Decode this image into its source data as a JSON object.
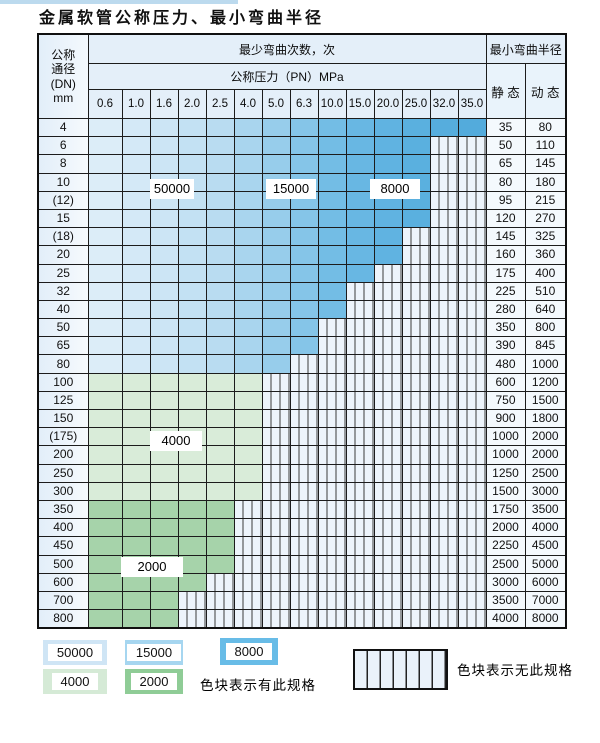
{
  "title": "金属软管公称压力、最小弯曲半径",
  "table": {
    "dn_header_lines": [
      "公称",
      "通径",
      "(DN)",
      "mm"
    ],
    "bend_cycles_header": "最少弯曲次数，次",
    "pressure_header": "公称压力（PN）MPa",
    "radius_header": "最小弯曲半径",
    "static_header": "静 态",
    "dynamic_header": "动 态",
    "pressure_columns": [
      "0.6",
      "1.0",
      "1.6",
      "2.0",
      "2.5",
      "4.0",
      "5.0",
      "6.3",
      "10.0",
      "15.0",
      "20.0",
      "25.0",
      "32.0",
      "35.0"
    ],
    "rows": [
      {
        "dn": "4",
        "band": "blue",
        "last_colored": 13,
        "static": "35",
        "dynamic": "80"
      },
      {
        "dn": "6",
        "band": "blue",
        "last_colored": 11,
        "static": "50",
        "dynamic": "110"
      },
      {
        "dn": "8",
        "band": "blue",
        "last_colored": 11,
        "static": "65",
        "dynamic": "145"
      },
      {
        "dn": "10",
        "band": "blue",
        "last_colored": 11,
        "static": "80",
        "dynamic": "180"
      },
      {
        "dn": "(12)",
        "band": "blue",
        "last_colored": 11,
        "static": "95",
        "dynamic": "215"
      },
      {
        "dn": "15",
        "band": "blue",
        "last_colored": 11,
        "static": "120",
        "dynamic": "270"
      },
      {
        "dn": "(18)",
        "band": "blue",
        "last_colored": 10,
        "static": "145",
        "dynamic": "325"
      },
      {
        "dn": "20",
        "band": "blue",
        "last_colored": 10,
        "static": "160",
        "dynamic": "360"
      },
      {
        "dn": "25",
        "band": "blue",
        "last_colored": 9,
        "static": "175",
        "dynamic": "400"
      },
      {
        "dn": "32",
        "band": "blue",
        "last_colored": 8,
        "static": "225",
        "dynamic": "510"
      },
      {
        "dn": "40",
        "band": "blue",
        "last_colored": 8,
        "static": "280",
        "dynamic": "640"
      },
      {
        "dn": "50",
        "band": "blue",
        "last_colored": 7,
        "static": "350",
        "dynamic": "800"
      },
      {
        "dn": "65",
        "band": "blue",
        "last_colored": 7,
        "static": "390",
        "dynamic": "845"
      },
      {
        "dn": "80",
        "band": "blue",
        "last_colored": 6,
        "static": "480",
        "dynamic": "1000"
      },
      {
        "dn": "100",
        "band": "green4000",
        "last_colored": 5,
        "static": "600",
        "dynamic": "1200"
      },
      {
        "dn": "125",
        "band": "green4000",
        "last_colored": 5,
        "static": "750",
        "dynamic": "1500"
      },
      {
        "dn": "150",
        "band": "green4000",
        "last_colored": 5,
        "static": "900",
        "dynamic": "1800"
      },
      {
        "dn": "(175)",
        "band": "green4000",
        "last_colored": 5,
        "static": "1000",
        "dynamic": "2000"
      },
      {
        "dn": "200",
        "band": "green4000",
        "last_colored": 5,
        "static": "1000",
        "dynamic": "2000"
      },
      {
        "dn": "250",
        "band": "green4000",
        "last_colored": 5,
        "static": "1250",
        "dynamic": "2500"
      },
      {
        "dn": "300",
        "band": "green4000",
        "last_colored": 5,
        "static": "1500",
        "dynamic": "3000"
      },
      {
        "dn": "350",
        "band": "green2000",
        "last_colored": 4,
        "static": "1750",
        "dynamic": "3500"
      },
      {
        "dn": "400",
        "band": "green2000",
        "last_colored": 4,
        "static": "2000",
        "dynamic": "4000"
      },
      {
        "dn": "450",
        "band": "green2000",
        "last_colored": 4,
        "static": "2250",
        "dynamic": "4500"
      },
      {
        "dn": "500",
        "band": "green2000",
        "last_colored": 4,
        "static": "2500",
        "dynamic": "5000"
      },
      {
        "dn": "600",
        "band": "green2000",
        "last_colored": 3,
        "static": "3000",
        "dynamic": "6000"
      },
      {
        "dn": "700",
        "band": "green2000",
        "last_colored": 2,
        "static": "3500",
        "dynamic": "7000"
      },
      {
        "dn": "800",
        "band": "green2000",
        "last_colored": 2,
        "static": "4000",
        "dynamic": "8000"
      }
    ],
    "overlay_labels": [
      {
        "text": "50000"
      },
      {
        "text": "15000"
      },
      {
        "text": "8000"
      },
      {
        "text": "4000"
      },
      {
        "text": "2000"
      }
    ]
  },
  "colors": {
    "blue_columns": [
      "#dcedf8",
      "#d4e9f7",
      "#cce5f5",
      "#c3e1f3",
      "#b9dcf1",
      "#a9d5ee",
      "#97cdeb",
      "#85c5e8",
      "#73bde5",
      "#68b7e3",
      "#60b3e1",
      "#5ab0df",
      "#56addd",
      "#53abdc"
    ],
    "green_4000": "#d9ecd9",
    "green_2000": "#a6d3aa",
    "na_background": "#edf4fb"
  },
  "legend": {
    "items": [
      {
        "label": "50000",
        "color": "#cfe5f5"
      },
      {
        "label": "15000",
        "color": "#a6d6f0"
      },
      {
        "label": "8000",
        "color": "#68bce7"
      },
      {
        "label": "4000",
        "color": "#d5ead6"
      },
      {
        "label": "2000",
        "color": "#8fcc96"
      }
    ],
    "has_spec_note": "色块表示有此规格",
    "no_spec_note": "色块表示无此规格"
  }
}
